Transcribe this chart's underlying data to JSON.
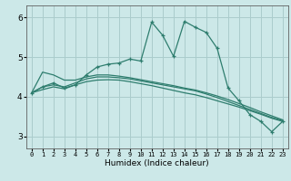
{
  "title": "",
  "xlabel": "Humidex (Indice chaleur)",
  "bg_color": "#cce8e8",
  "grid_color": "#aacccc",
  "line_color": "#2e7d6e",
  "xlim": [
    -0.5,
    23.5
  ],
  "ylim": [
    2.7,
    6.3
  ],
  "yticks": [
    3,
    4,
    5,
    6
  ],
  "xticks": [
    0,
    1,
    2,
    3,
    4,
    5,
    6,
    7,
    8,
    9,
    10,
    11,
    12,
    13,
    14,
    15,
    16,
    17,
    18,
    19,
    20,
    21,
    22,
    23
  ],
  "s1_x": [
    0,
    1,
    2,
    3,
    4,
    5,
    6,
    7,
    8,
    9,
    10,
    11,
    12,
    13,
    14,
    15,
    16,
    17,
    18,
    19,
    20,
    21,
    22,
    23
  ],
  "s1_y": [
    4.1,
    4.25,
    4.35,
    4.22,
    4.3,
    4.55,
    4.75,
    4.82,
    4.85,
    4.95,
    4.9,
    5.88,
    5.55,
    5.02,
    5.9,
    5.75,
    5.62,
    5.22,
    4.22,
    3.9,
    3.55,
    3.38,
    3.12,
    3.38
  ],
  "s2_x": [
    0,
    1,
    2,
    3,
    4,
    5,
    6,
    7,
    8,
    9,
    10,
    11,
    12,
    13,
    14,
    15,
    16,
    17,
    18,
    19,
    20,
    21,
    22,
    23
  ],
  "s2_y": [
    4.1,
    4.62,
    4.55,
    4.42,
    4.42,
    4.5,
    4.55,
    4.55,
    4.52,
    4.48,
    4.43,
    4.38,
    4.33,
    4.28,
    4.22,
    4.17,
    4.1,
    4.02,
    3.93,
    3.83,
    3.73,
    3.62,
    3.52,
    3.42
  ],
  "s3_x": [
    0,
    1,
    2,
    3,
    4,
    5,
    6,
    7,
    8,
    9,
    10,
    11,
    12,
    13,
    14,
    15,
    16,
    17,
    18,
    19,
    20,
    21,
    22,
    23
  ],
  "s3_y": [
    4.1,
    4.25,
    4.3,
    4.25,
    4.35,
    4.45,
    4.5,
    4.5,
    4.48,
    4.45,
    4.4,
    4.35,
    4.3,
    4.25,
    4.2,
    4.15,
    4.07,
    3.98,
    3.88,
    3.78,
    3.68,
    3.58,
    3.48,
    3.4
  ],
  "s4_x": [
    0,
    1,
    2,
    3,
    4,
    5,
    6,
    7,
    8,
    9,
    10,
    11,
    12,
    13,
    14,
    15,
    16,
    17,
    18,
    19,
    20,
    21,
    22,
    23
  ],
  "s4_y": [
    4.1,
    4.18,
    4.25,
    4.2,
    4.3,
    4.38,
    4.42,
    4.43,
    4.42,
    4.38,
    4.33,
    4.28,
    4.22,
    4.16,
    4.1,
    4.05,
    3.98,
    3.9,
    3.82,
    3.74,
    3.65,
    3.56,
    3.46,
    3.38
  ]
}
